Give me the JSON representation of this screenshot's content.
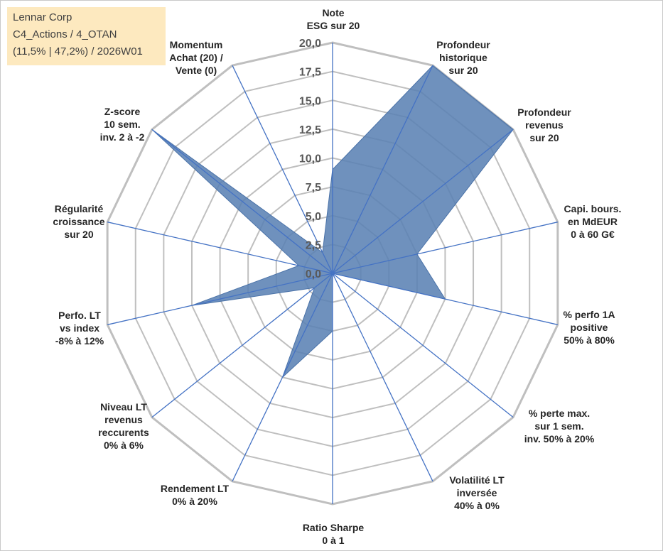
{
  "info": {
    "line1": "Lennar Corp",
    "line2": "C4_Actions / 4_OTAN",
    "line3": "(11,5% | 47,2%) / 2026W01"
  },
  "chart_data": {
    "type": "radar",
    "title": "",
    "rmin": 0,
    "rmax": 20,
    "ticks": [
      "0,0",
      "2,5",
      "5,0",
      "7,5",
      "10,0",
      "12,5",
      "15,0",
      "17,5",
      "20,0"
    ],
    "tick_values": [
      0,
      2.5,
      5,
      7.5,
      10,
      12.5,
      15,
      17.5,
      20
    ],
    "grid": true,
    "colors": {
      "fill": "#5b82b4",
      "axis": "#4472c4",
      "grid": "#bfbfbf"
    },
    "axes": [
      {
        "label": [
          "Note",
          "ESG sur 20"
        ],
        "value": 9.0
      },
      {
        "label": [
          "Profondeur",
          "historique",
          "sur 20"
        ],
        "value": 20.0
      },
      {
        "label": [
          "Profondeur",
          "revenus",
          "sur 20"
        ],
        "value": 20.0
      },
      {
        "label": [
          "Capi. bours.",
          "en MdEUR",
          "0 à 60 G€"
        ],
        "value": 7.5
      },
      {
        "label": [
          "% perfo 1A",
          "positive",
          "50% à 80%"
        ],
        "value": 10.0
      },
      {
        "label": [
          "% perte max.",
          "sur 1 sem.",
          "inv. 50% à 20%"
        ],
        "value": 0.0
      },
      {
        "label": [
          "Volatilité LT",
          "inversée",
          "40% à 0%"
        ],
        "value": 0.0
      },
      {
        "label": [
          "Ratio Sharpe",
          "0 à 1"
        ],
        "value": 5.0
      },
      {
        "label": [
          "Rendement LT",
          "0% à 20%"
        ],
        "value": 10.0
      },
      {
        "label": [
          "Niveau LT",
          "revenus",
          "reccurents",
          "0% à 6%"
        ],
        "value": 2.0
      },
      {
        "label": [
          "Perfo. LT",
          "vs index",
          "-8% à 12%"
        ],
        "value": 12.5
      },
      {
        "label": [
          "Régularité",
          "croissance",
          "sur 20"
        ],
        "value": 3.0
      },
      {
        "label": [
          "Z-score",
          "10 sem.",
          "inv. 2 à -2"
        ],
        "value": 20.0
      },
      {
        "label": [
          "Momentum",
          "Achat (20) /",
          "Vente (0)"
        ],
        "value": 2.0
      }
    ]
  }
}
